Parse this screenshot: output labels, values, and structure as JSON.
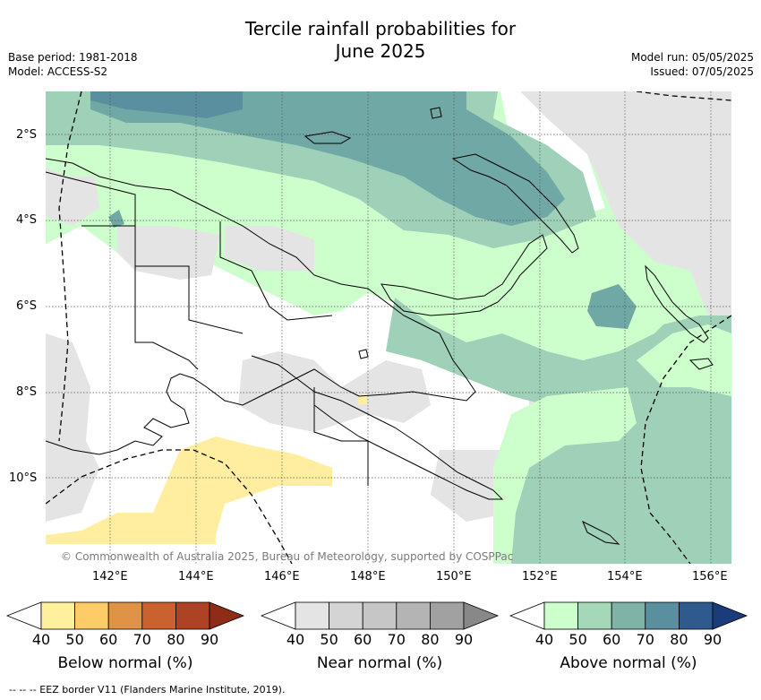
{
  "title_line1": "Tercile rainfall probabilities for",
  "title_line2": "June 2025",
  "meta": {
    "base_period": "Base period: 1981-2018",
    "model": "Model: ACCESS-S2",
    "model_run": "Model run: 05/05/2025",
    "issued": "Issued: 07/05/2025"
  },
  "map": {
    "lat_labels": [
      "2°S",
      "4°S",
      "6°S",
      "8°S",
      "10°S"
    ],
    "lon_labels": [
      "142°E",
      "144°E",
      "146°E",
      "148°E",
      "150°E",
      "152°E",
      "154°E",
      "156°E"
    ],
    "copyright": "© Commonwealth of Australia 2025, Bureau of Meteorology, supported by COSPPac",
    "colors": {
      "below_40": "#ffeda0",
      "near_40": "#e4e4e4",
      "above_40": "#ccffcc",
      "above_50": "#9ed1b8",
      "above_60": "#70a8a6",
      "above_70": "#5a8fa0"
    }
  },
  "colorbars": [
    {
      "title": "Below normal (%)",
      "ticks": [
        "40",
        "50",
        "60",
        "70",
        "80",
        "90"
      ],
      "colors": [
        "#fff09e",
        "#fdcc66",
        "#e09347",
        "#ca612f",
        "#ad4224",
        "#8e2c18"
      ]
    },
    {
      "title": "Near normal (%)",
      "ticks": [
        "40",
        "50",
        "60",
        "70",
        "80",
        "90"
      ],
      "colors": [
        "#e4e4e4",
        "#d4d4d4",
        "#c6c6c6",
        "#b4b4b4",
        "#a1a1a1",
        "#888888"
      ]
    },
    {
      "title": "Above normal (%)",
      "ticks": [
        "40",
        "50",
        "60",
        "70",
        "80",
        "90"
      ],
      "colors": [
        "#ccffcc",
        "#a5d8b8",
        "#7fb3a8",
        "#5a8fa0",
        "#2e5a8e",
        "#1a3c7a"
      ]
    }
  ],
  "footnote": "--  --  -- EEZ border V11 (Flanders Marine Institute, 2019)."
}
